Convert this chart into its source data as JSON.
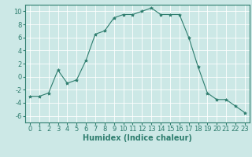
{
  "x": [
    0,
    1,
    2,
    3,
    4,
    5,
    6,
    7,
    8,
    9,
    10,
    11,
    12,
    13,
    14,
    15,
    16,
    17,
    18,
    19,
    20,
    21,
    22,
    23
  ],
  "y": [
    -3,
    -3,
    -2.5,
    1,
    -1,
    -0.5,
    2.5,
    6.5,
    7,
    9,
    9.5,
    9.5,
    10,
    10.5,
    9.5,
    9.5,
    9.5,
    6,
    1.5,
    -2.5,
    -3.5,
    -3.5,
    -4.5,
    -5.5
  ],
  "line_color": "#2e7d6e",
  "marker": "*",
  "marker_size": 3,
  "bg_color": "#cce8e6",
  "grid_color": "#ffffff",
  "xlabel": "Humidex (Indice chaleur)",
  "xlim": [
    -0.5,
    23.5
  ],
  "ylim": [
    -7,
    11
  ],
  "xticks": [
    0,
    1,
    2,
    3,
    4,
    5,
    6,
    7,
    8,
    9,
    10,
    11,
    12,
    13,
    14,
    15,
    16,
    17,
    18,
    19,
    20,
    21,
    22,
    23
  ],
  "yticks": [
    -6,
    -4,
    -2,
    0,
    2,
    4,
    6,
    8,
    10
  ],
  "tick_fontsize": 6,
  "xlabel_fontsize": 7
}
